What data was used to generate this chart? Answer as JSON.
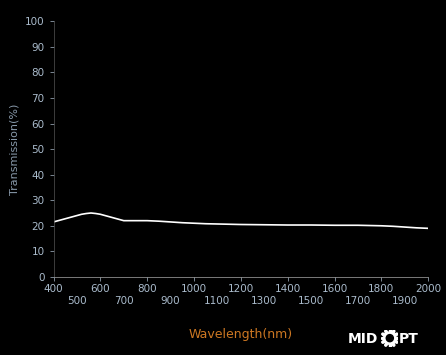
{
  "title": "",
  "xlabel": "Wavelength(nm)",
  "ylabel": "Transmission(%)",
  "background_color": "#000000",
  "line_color": "#ffffff",
  "xlabel_color": "#cc7722",
  "ylabel_color": "#8899aa",
  "tick_label_color": "#aabbcc",
  "xlim": [
    400,
    2000
  ],
  "ylim": [
    0,
    100
  ],
  "yticks": [
    0,
    10,
    20,
    30,
    40,
    50,
    60,
    70,
    80,
    90,
    100
  ],
  "xticks_top": [
    400,
    600,
    800,
    1000,
    1200,
    1400,
    1600,
    1800,
    2000
  ],
  "xticks_bottom": [
    500,
    700,
    900,
    1100,
    1300,
    1500,
    1700,
    1900
  ],
  "wavelengths": [
    400,
    420,
    440,
    460,
    480,
    500,
    520,
    540,
    560,
    580,
    600,
    620,
    640,
    660,
    680,
    700,
    750,
    800,
    850,
    900,
    950,
    1000,
    1050,
    1100,
    1150,
    1200,
    1300,
    1400,
    1500,
    1600,
    1700,
    1800,
    1850,
    1900,
    1950,
    2000
  ],
  "transmission": [
    21.5,
    22.0,
    22.5,
    23.0,
    23.5,
    24.0,
    24.5,
    24.8,
    25.0,
    24.8,
    24.5,
    24.0,
    23.5,
    23.0,
    22.5,
    22.0,
    22.0,
    22.0,
    21.8,
    21.5,
    21.2,
    21.0,
    20.8,
    20.7,
    20.6,
    20.5,
    20.4,
    20.3,
    20.3,
    20.2,
    20.2,
    20.0,
    19.8,
    19.5,
    19.2,
    19.0
  ],
  "line_width": 1.2,
  "xlabel_fontsize": 9,
  "ylabel_fontsize": 8,
  "tick_fontsize": 7.5
}
